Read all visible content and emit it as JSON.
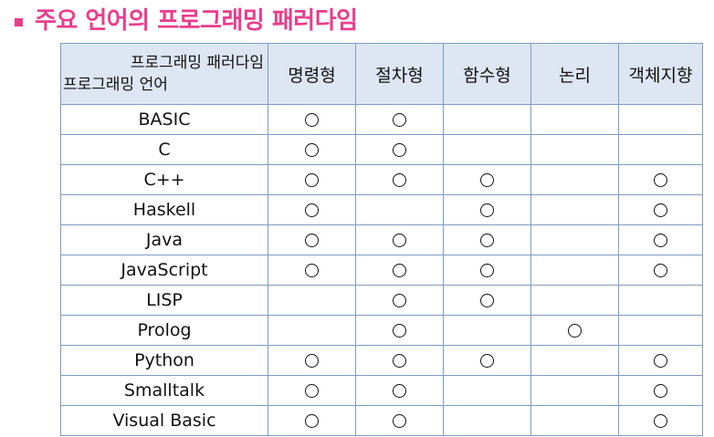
{
  "title": "주요 언어의 프로그래밍 패러다임",
  "colors": {
    "title": "#e83e8c",
    "bullet": "#e83e8c",
    "header_bg": "#dde6f2",
    "grid": "#7f9cc0"
  },
  "table": {
    "corner_top": "프로그래밍 패러다임",
    "corner_bottom": "프로그래밍 언어",
    "mark_symbol": "circle",
    "columns": [
      "명령형",
      "절차형",
      "함수형",
      "논리",
      "객체지향"
    ],
    "rows": [
      {
        "lang": "BASIC",
        "marks": [
          true,
          true,
          false,
          false,
          false
        ]
      },
      {
        "lang": "C",
        "marks": [
          true,
          true,
          false,
          false,
          false
        ]
      },
      {
        "lang": "C++",
        "marks": [
          true,
          true,
          true,
          false,
          true
        ]
      },
      {
        "lang": "Haskell",
        "marks": [
          true,
          false,
          true,
          false,
          true
        ]
      },
      {
        "lang": "Java",
        "marks": [
          true,
          true,
          true,
          false,
          true
        ]
      },
      {
        "lang": "JavaScript",
        "marks": [
          true,
          true,
          true,
          false,
          true
        ]
      },
      {
        "lang": "LISP",
        "marks": [
          false,
          true,
          true,
          false,
          false
        ]
      },
      {
        "lang": "Prolog",
        "marks": [
          false,
          true,
          false,
          true,
          false
        ]
      },
      {
        "lang": "Python",
        "marks": [
          true,
          true,
          true,
          false,
          true
        ]
      },
      {
        "lang": "Smalltalk",
        "marks": [
          true,
          true,
          false,
          false,
          true
        ]
      },
      {
        "lang": "Visual Basic",
        "marks": [
          true,
          true,
          false,
          false,
          true
        ]
      }
    ]
  }
}
